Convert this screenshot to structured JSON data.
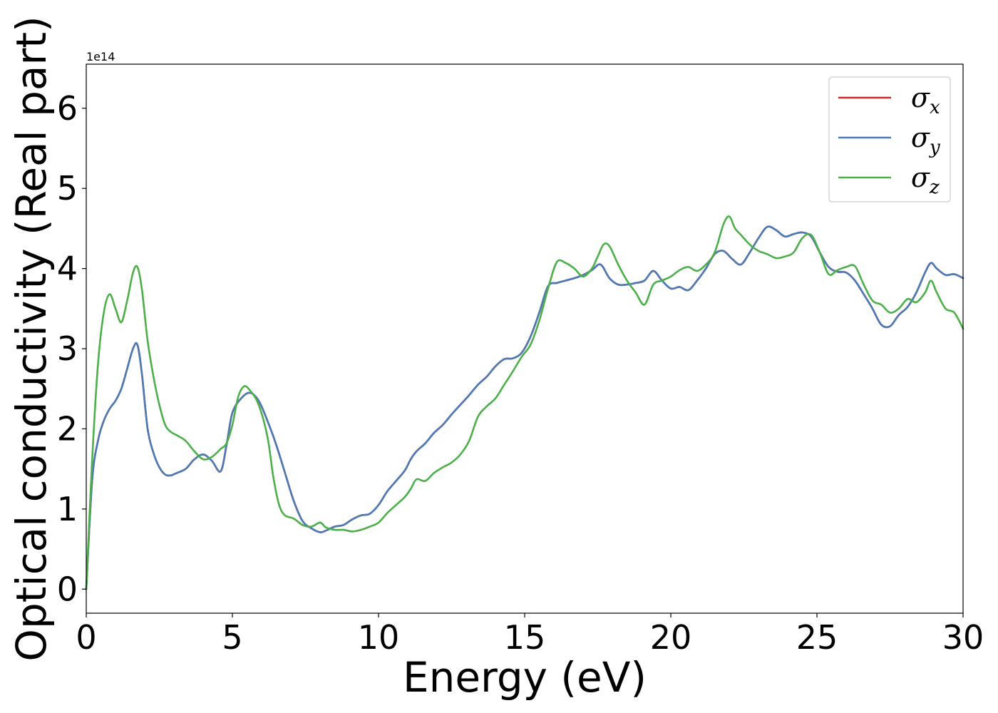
{
  "chart_data": {
    "type": "line",
    "title": "",
    "xlabel": "Energy (eV)",
    "ylabel": "Optical conductivity (Real part)",
    "y_offset_label": "1e14",
    "y_scale_factor": 100000000000000.0,
    "xlim": [
      0,
      30
    ],
    "ylim": [
      -0.3,
      6.55
    ],
    "xticks": [
      0,
      5,
      10,
      15,
      20,
      25,
      30
    ],
    "yticks": [
      0,
      1,
      2,
      3,
      4,
      5,
      6
    ],
    "grid": false,
    "legend": "top-right",
    "series": [
      {
        "name": "x",
        "color": "#d62728",
        "x": [
          0,
          0.2,
          0.4,
          0.6,
          0.8,
          1.0,
          1.2,
          1.4,
          1.6,
          1.75,
          1.9,
          2.1,
          2.3,
          2.5,
          2.7,
          2.9,
          3.1,
          3.4,
          3.7,
          4.0,
          4.3,
          4.6,
          4.8,
          5.0,
          5.3,
          5.6,
          5.9,
          6.2,
          6.5,
          6.8,
          7.1,
          7.4,
          7.7,
          8.0,
          8.2,
          8.5,
          8.8,
          9.1,
          9.4,
          9.7,
          10.0,
          10.3,
          10.6,
          10.9,
          11.1,
          11.3,
          11.6,
          11.9,
          12.2,
          12.5,
          12.8,
          13.1,
          13.4,
          13.7,
          14.0,
          14.3,
          14.6,
          14.9,
          15.2,
          15.5,
          15.8,
          16.1,
          16.4,
          16.7,
          17.0,
          17.3,
          17.6,
          17.9,
          18.2,
          18.5,
          18.8,
          19.1,
          19.4,
          19.7,
          20.0,
          20.3,
          20.6,
          20.9,
          21.2,
          21.5,
          21.8,
          22.1,
          22.4,
          22.7,
          23.0,
          23.3,
          23.6,
          23.9,
          24.2,
          24.5,
          24.8,
          25.1,
          25.4,
          25.7,
          26.0,
          26.3,
          26.6,
          26.9,
          27.2,
          27.5,
          27.8,
          28.1,
          28.4,
          28.7,
          28.9,
          29.1,
          29.4,
          29.7,
          30.0
        ],
        "values": [
          0,
          1.35,
          1.85,
          2.1,
          2.25,
          2.35,
          2.5,
          2.75,
          3.0,
          3.05,
          2.7,
          2.0,
          1.7,
          1.52,
          1.43,
          1.42,
          1.45,
          1.5,
          1.62,
          1.68,
          1.6,
          1.47,
          1.8,
          2.2,
          2.38,
          2.45,
          2.35,
          2.1,
          1.8,
          1.45,
          1.1,
          0.85,
          0.76,
          0.71,
          0.73,
          0.78,
          0.8,
          0.87,
          0.92,
          0.94,
          1.05,
          1.22,
          1.35,
          1.48,
          1.62,
          1.72,
          1.82,
          1.95,
          2.05,
          2.18,
          2.3,
          2.42,
          2.55,
          2.65,
          2.78,
          2.87,
          2.88,
          2.95,
          3.15,
          3.45,
          3.78,
          3.82,
          3.85,
          3.88,
          3.92,
          3.98,
          4.05,
          3.88,
          3.8,
          3.8,
          3.82,
          3.85,
          3.97,
          3.85,
          3.75,
          3.77,
          3.73,
          3.85,
          4.0,
          4.18,
          4.22,
          4.12,
          4.05,
          4.2,
          4.38,
          4.52,
          4.48,
          4.4,
          4.43,
          4.45,
          4.4,
          4.2,
          4.02,
          3.96,
          3.95,
          3.85,
          3.68,
          3.5,
          3.3,
          3.28,
          3.42,
          3.52,
          3.7,
          3.95,
          4.07,
          4.0,
          3.92,
          3.93,
          3.88
        ]
      },
      {
        "name": "y",
        "color": "#4a7bb7",
        "x": [
          0,
          0.2,
          0.4,
          0.6,
          0.8,
          1.0,
          1.2,
          1.4,
          1.6,
          1.75,
          1.9,
          2.1,
          2.3,
          2.5,
          2.7,
          2.9,
          3.1,
          3.4,
          3.7,
          4.0,
          4.3,
          4.6,
          4.8,
          5.0,
          5.3,
          5.6,
          5.9,
          6.2,
          6.5,
          6.8,
          7.1,
          7.4,
          7.7,
          8.0,
          8.2,
          8.5,
          8.8,
          9.1,
          9.4,
          9.7,
          10.0,
          10.3,
          10.6,
          10.9,
          11.1,
          11.3,
          11.6,
          11.9,
          12.2,
          12.5,
          12.8,
          13.1,
          13.4,
          13.7,
          14.0,
          14.3,
          14.6,
          14.9,
          15.2,
          15.5,
          15.8,
          16.1,
          16.4,
          16.7,
          17.0,
          17.3,
          17.6,
          17.9,
          18.2,
          18.5,
          18.8,
          19.1,
          19.4,
          19.7,
          20.0,
          20.3,
          20.6,
          20.9,
          21.2,
          21.5,
          21.8,
          22.1,
          22.4,
          22.7,
          23.0,
          23.3,
          23.6,
          23.9,
          24.2,
          24.5,
          24.8,
          25.1,
          25.4,
          25.7,
          26.0,
          26.3,
          26.6,
          26.9,
          27.2,
          27.5,
          27.8,
          28.1,
          28.4,
          28.7,
          28.9,
          29.1,
          29.4,
          29.7,
          30.0
        ],
        "values": [
          0,
          1.35,
          1.85,
          2.1,
          2.25,
          2.35,
          2.5,
          2.75,
          3.0,
          3.05,
          2.7,
          2.0,
          1.7,
          1.52,
          1.43,
          1.42,
          1.45,
          1.5,
          1.62,
          1.68,
          1.6,
          1.47,
          1.8,
          2.2,
          2.38,
          2.45,
          2.35,
          2.1,
          1.8,
          1.45,
          1.1,
          0.85,
          0.76,
          0.71,
          0.73,
          0.78,
          0.8,
          0.87,
          0.92,
          0.94,
          1.05,
          1.22,
          1.35,
          1.48,
          1.62,
          1.72,
          1.82,
          1.95,
          2.05,
          2.18,
          2.3,
          2.42,
          2.55,
          2.65,
          2.78,
          2.87,
          2.88,
          2.95,
          3.15,
          3.45,
          3.78,
          3.82,
          3.85,
          3.88,
          3.92,
          3.98,
          4.05,
          3.88,
          3.8,
          3.8,
          3.82,
          3.85,
          3.97,
          3.85,
          3.75,
          3.77,
          3.73,
          3.85,
          4.0,
          4.18,
          4.22,
          4.12,
          4.05,
          4.2,
          4.38,
          4.52,
          4.48,
          4.4,
          4.43,
          4.45,
          4.4,
          4.2,
          4.02,
          3.96,
          3.95,
          3.85,
          3.68,
          3.5,
          3.3,
          3.28,
          3.42,
          3.52,
          3.7,
          3.95,
          4.07,
          4.0,
          3.92,
          3.93,
          3.88
        ]
      },
      {
        "name": "z",
        "color": "#4daf4a",
        "x": [
          0,
          0.2,
          0.4,
          0.6,
          0.8,
          1.0,
          1.2,
          1.4,
          1.6,
          1.75,
          1.9,
          2.1,
          2.3,
          2.5,
          2.7,
          2.9,
          3.1,
          3.4,
          3.7,
          4.0,
          4.3,
          4.6,
          4.8,
          5.0,
          5.2,
          5.4,
          5.6,
          5.9,
          6.2,
          6.4,
          6.6,
          6.8,
          7.1,
          7.4,
          7.7,
          8.0,
          8.2,
          8.5,
          8.8,
          9.1,
          9.4,
          9.7,
          10.0,
          10.3,
          10.6,
          10.9,
          11.1,
          11.3,
          11.6,
          11.9,
          12.2,
          12.5,
          12.8,
          13.1,
          13.4,
          13.7,
          14.0,
          14.3,
          14.6,
          14.9,
          15.2,
          15.5,
          15.8,
          16.1,
          16.4,
          16.7,
          17.0,
          17.3,
          17.5,
          17.7,
          17.9,
          18.2,
          18.5,
          18.8,
          19.1,
          19.4,
          19.7,
          20.0,
          20.3,
          20.6,
          20.9,
          21.2,
          21.5,
          21.8,
          22.0,
          22.2,
          22.4,
          22.7,
          23.0,
          23.3,
          23.6,
          23.9,
          24.2,
          24.5,
          24.8,
          25.1,
          25.4,
          25.7,
          26.0,
          26.3,
          26.6,
          26.9,
          27.2,
          27.5,
          27.8,
          28.1,
          28.4,
          28.7,
          28.9,
          29.1,
          29.4,
          29.7,
          30.0
        ],
        "values": [
          0,
          1.6,
          2.8,
          3.45,
          3.68,
          3.5,
          3.33,
          3.6,
          3.95,
          4.02,
          3.75,
          3.1,
          2.65,
          2.3,
          2.05,
          1.96,
          1.92,
          1.85,
          1.72,
          1.62,
          1.65,
          1.75,
          1.82,
          2.05,
          2.4,
          2.53,
          2.48,
          2.3,
          1.9,
          1.4,
          1.05,
          0.92,
          0.88,
          0.8,
          0.78,
          0.83,
          0.77,
          0.74,
          0.74,
          0.72,
          0.74,
          0.78,
          0.83,
          0.95,
          1.05,
          1.15,
          1.25,
          1.37,
          1.35,
          1.45,
          1.52,
          1.58,
          1.68,
          1.85,
          2.15,
          2.28,
          2.38,
          2.55,
          2.72,
          2.9,
          3.05,
          3.35,
          3.75,
          4.08,
          4.07,
          4.0,
          3.9,
          4.0,
          4.15,
          4.3,
          4.28,
          4.05,
          3.85,
          3.7,
          3.55,
          3.8,
          3.85,
          3.9,
          3.98,
          4.02,
          3.97,
          4.05,
          4.2,
          4.55,
          4.65,
          4.5,
          4.42,
          4.3,
          4.22,
          4.18,
          4.13,
          4.15,
          4.2,
          4.38,
          4.42,
          4.2,
          3.93,
          3.98,
          4.02,
          4.03,
          3.8,
          3.6,
          3.55,
          3.45,
          3.5,
          3.62,
          3.58,
          3.7,
          3.85,
          3.7,
          3.5,
          3.45,
          3.25
        ]
      }
    ]
  }
}
